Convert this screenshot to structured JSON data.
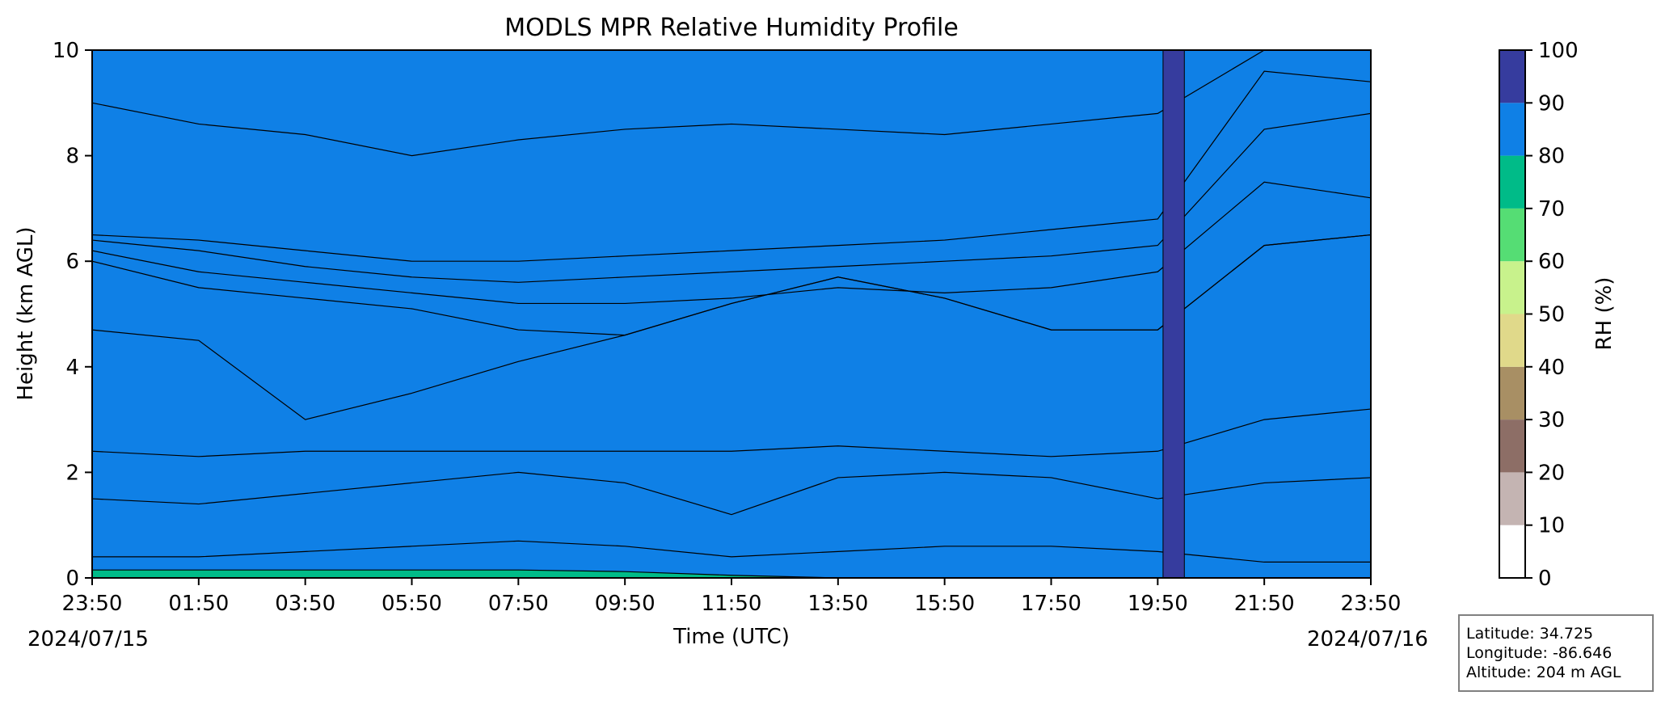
{
  "chart_data": {
    "type": "heatmap",
    "title": "MODLS MPR Relative Humidity Profile",
    "xlabel": "Time (UTC)",
    "ylabel": "Height (km AGL)",
    "x_tick_labels": [
      "23:50",
      "01:50",
      "03:50",
      "05:50",
      "07:50",
      "09:50",
      "11:50",
      "13:50",
      "15:50",
      "17:50",
      "19:50",
      "21:50",
      "23:50"
    ],
    "y_tick_labels": [
      "0",
      "2",
      "4",
      "6",
      "8",
      "10"
    ],
    "ylim": [
      0,
      10
    ],
    "start_date": "2024/07/15",
    "end_date": "2024/07/16",
    "colorbar": {
      "label": "RH (%)",
      "levels": [
        0,
        10,
        20,
        30,
        40,
        50,
        60,
        70,
        80,
        90,
        100
      ],
      "tick_labels": [
        "0",
        "10",
        "20",
        "30",
        "40",
        "50",
        "60",
        "70",
        "80",
        "90",
        "100"
      ],
      "colors": [
        "#ffffff",
        "#c4b4b2",
        "#8d6e66",
        "#a88f64",
        "#e0d98a",
        "#c8f28c",
        "#55dd74",
        "#00bb88",
        "#0f80e6",
        "#363c9e"
      ]
    },
    "series": [
      {
        "x": [
          0,
          1,
          2,
          3,
          4,
          5,
          6,
          7,
          8,
          9,
          10,
          11,
          12
        ],
        "values": [
          0.15,
          0.15,
          0.15,
          0.15,
          0.15,
          0.12,
          0.05,
          0.0,
          0.0,
          0.0,
          0.0,
          0.0,
          0.0
        ]
      },
      {
        "x": [
          0,
          1,
          2,
          3,
          4,
          5,
          6,
          7,
          8,
          9,
          10,
          11,
          12
        ],
        "values": [
          0.4,
          0.4,
          0.5,
          0.6,
          0.7,
          0.6,
          0.4,
          0.5,
          0.6,
          0.6,
          0.5,
          0.3,
          0.3
        ]
      },
      {
        "x": [
          0,
          1,
          2,
          3,
          4,
          5,
          6,
          7,
          8,
          9,
          10,
          11,
          12
        ],
        "values": [
          1.5,
          1.4,
          1.6,
          1.8,
          2.0,
          1.8,
          1.2,
          1.9,
          2.0,
          1.9,
          1.5,
          1.8,
          1.9
        ]
      },
      {
        "x": [
          0,
          1,
          2,
          3,
          4,
          5,
          6,
          7,
          8,
          9,
          10,
          11,
          12
        ],
        "values": [
          2.4,
          2.3,
          2.4,
          2.4,
          2.4,
          2.4,
          2.4,
          2.5,
          2.4,
          2.3,
          2.4,
          3.0,
          3.2
        ]
      },
      {
        "x": [
          0,
          1,
          2,
          3,
          4,
          5,
          6,
          7,
          8,
          9,
          10,
          11,
          12
        ],
        "values": [
          4.7,
          4.5,
          3.0,
          3.5,
          4.1,
          4.6,
          5.2,
          5.7,
          5.3,
          4.7,
          4.7,
          6.3,
          6.5
        ]
      },
      {
        "x": [
          0,
          1,
          2,
          3,
          4,
          5,
          6,
          7,
          8,
          9,
          10,
          11,
          12
        ],
        "values": [
          6.0,
          5.5,
          5.3,
          5.1,
          4.7,
          4.6,
          5.2,
          5.7,
          5.3,
          4.7,
          4.7,
          6.3,
          6.5
        ]
      },
      {
        "x": [
          0,
          1,
          2,
          3,
          4,
          5,
          6,
          7,
          8,
          9,
          10,
          11,
          12
        ],
        "values": [
          6.2,
          5.8,
          5.6,
          5.4,
          5.2,
          5.2,
          5.3,
          5.5,
          5.4,
          5.5,
          5.8,
          7.5,
          7.2
        ]
      },
      {
        "x": [
          0,
          1,
          2,
          3,
          4,
          5,
          6,
          7,
          8,
          9,
          10,
          11,
          12
        ],
        "values": [
          6.4,
          6.2,
          5.9,
          5.7,
          5.6,
          5.7,
          5.8,
          5.9,
          6.0,
          6.1,
          6.3,
          8.5,
          8.8
        ]
      },
      {
        "x": [
          0,
          1,
          2,
          3,
          4,
          5,
          6,
          7,
          8,
          9,
          10,
          11,
          12
        ],
        "values": [
          6.5,
          6.4,
          6.2,
          6.0,
          6.0,
          6.1,
          6.2,
          6.3,
          6.4,
          6.6,
          6.8,
          9.6,
          9.4
        ]
      },
      {
        "x": [
          0,
          1,
          2,
          3,
          4,
          5,
          6,
          7,
          8,
          9,
          10,
          11,
          12
        ],
        "values": [
          9.0,
          8.6,
          8.4,
          8.0,
          8.3,
          8.5,
          8.6,
          8.5,
          8.4,
          8.6,
          8.8,
          10.0,
          10.0
        ]
      }
    ]
  },
  "location": {
    "latitude": "Latitude: 34.725",
    "longitude": "Longitude: -86.646",
    "altitude": "Altitude: 204 m AGL"
  }
}
